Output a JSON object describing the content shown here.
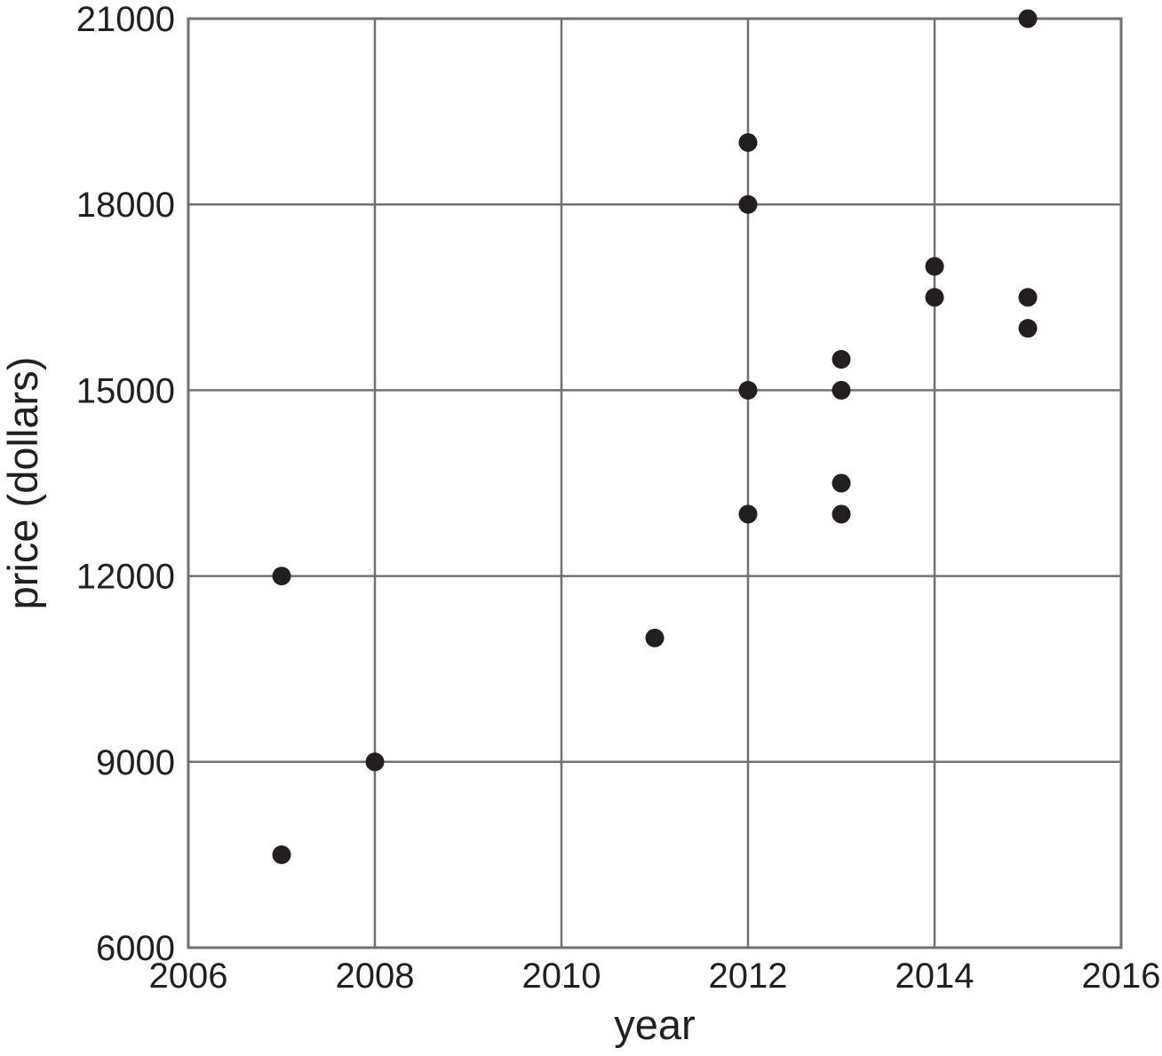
{
  "page": {
    "background_color": "#ffffff"
  },
  "chart_data": {
    "type": "scatter",
    "title": "",
    "xlabel": "year",
    "ylabel": "price (dollars)",
    "xlim": [
      2006,
      2016
    ],
    "ylim": [
      6000,
      21000
    ],
    "x_ticks": [
      2006,
      2008,
      2010,
      2012,
      2014,
      2016
    ],
    "y_ticks": [
      6000,
      9000,
      12000,
      15000,
      18000,
      21000
    ],
    "grid": true,
    "legend_position": "none",
    "marker": "circle",
    "point_color": "#231f20",
    "grid_color": "#6e7073",
    "border_color": "#6e7073",
    "label_color": "#231f20",
    "points": [
      {
        "year": 2007,
        "price": 7500
      },
      {
        "year": 2007,
        "price": 12000
      },
      {
        "year": 2008,
        "price": 9000
      },
      {
        "year": 2011,
        "price": 11000
      },
      {
        "year": 2012,
        "price": 13000
      },
      {
        "year": 2012,
        "price": 15000
      },
      {
        "year": 2012,
        "price": 18000
      },
      {
        "year": 2012,
        "price": 19000
      },
      {
        "year": 2013,
        "price": 13000
      },
      {
        "year": 2013,
        "price": 13500
      },
      {
        "year": 2013,
        "price": 15000
      },
      {
        "year": 2013,
        "price": 15500
      },
      {
        "year": 2014,
        "price": 16500
      },
      {
        "year": 2014,
        "price": 17000
      },
      {
        "year": 2015,
        "price": 16000
      },
      {
        "year": 2015,
        "price": 16500
      },
      {
        "year": 2015,
        "price": 21000
      }
    ]
  }
}
